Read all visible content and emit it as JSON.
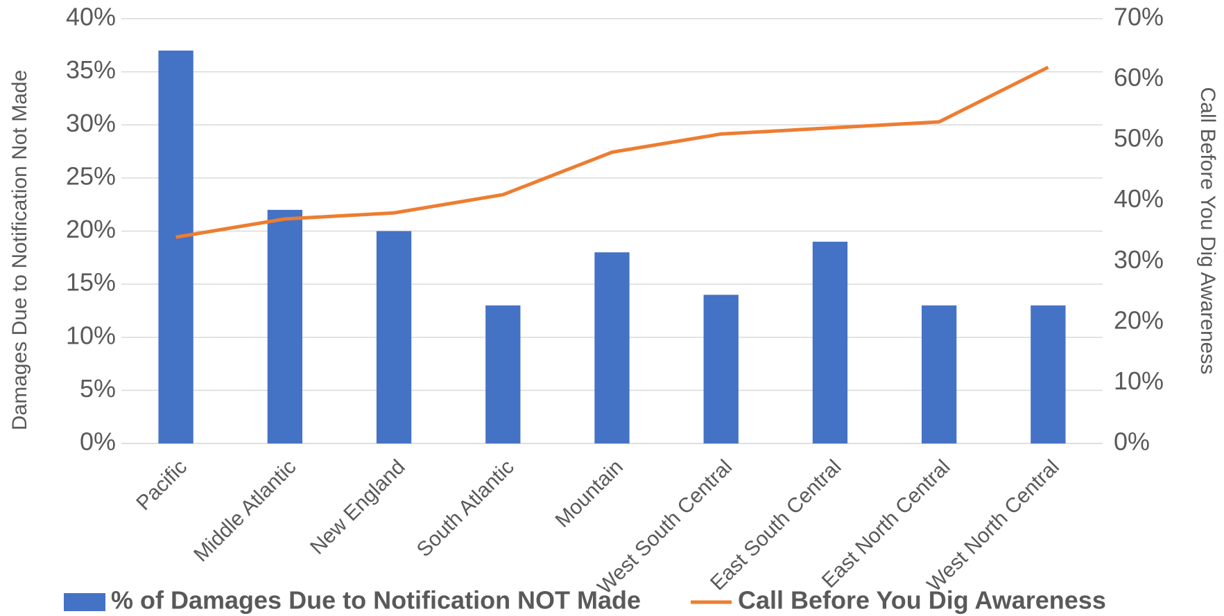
{
  "chart_data": {
    "type": "bar-line",
    "categories": [
      "Pacific",
      "Middle Atlantic",
      "New England",
      "South Atlantic",
      "Mountain",
      "West South Central",
      "East South Central",
      "East North Central",
      "West North Central"
    ],
    "series": [
      {
        "name": "% of Damages Due to Notification NOT Made",
        "type": "bar",
        "color": "#4472c4",
        "values": [
          37,
          22,
          20,
          13,
          18,
          14,
          19,
          13,
          13
        ]
      },
      {
        "name": "Call Before You Dig Awareness",
        "type": "line",
        "axis": "y2",
        "color": "#ed7d31",
        "values": [
          34,
          37,
          38,
          41,
          48,
          51,
          52,
          53,
          62
        ]
      }
    ],
    "ylabel": "Damages Due to Notification Not Made",
    "y2label": "Call Before You Dig Awareness",
    "ylim": [
      0,
      40
    ],
    "yticks": [
      {
        "value": 0,
        "label": "0%"
      },
      {
        "value": 5,
        "label": "5%"
      },
      {
        "value": 10,
        "label": "10%"
      },
      {
        "value": 15,
        "label": "15%"
      },
      {
        "value": 20,
        "label": "20%"
      },
      {
        "value": 25,
        "label": "25%"
      },
      {
        "value": 30,
        "label": "30%"
      },
      {
        "value": 35,
        "label": "35%"
      },
      {
        "value": 40,
        "label": "40%"
      }
    ],
    "y2lim": [
      0,
      70
    ],
    "y2ticks": [
      {
        "value": 0,
        "label": "0%"
      },
      {
        "value": 10,
        "label": "10%"
      },
      {
        "value": 20,
        "label": "20%"
      },
      {
        "value": 30,
        "label": "30%"
      },
      {
        "value": 40,
        "label": "40%"
      },
      {
        "value": 50,
        "label": "50%"
      },
      {
        "value": 60,
        "label": "60%"
      },
      {
        "value": 70,
        "label": "70%"
      }
    ],
    "grid": true,
    "legend": "bottom"
  }
}
